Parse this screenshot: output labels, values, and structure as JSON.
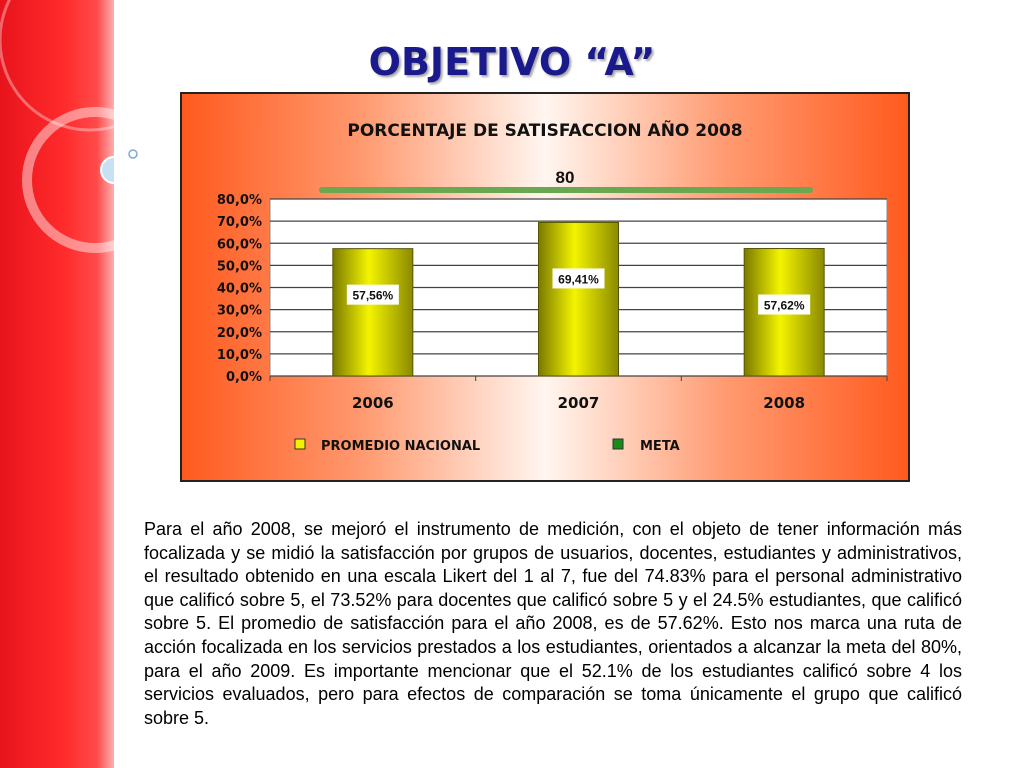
{
  "slide": {
    "title": "OBJETIVO “A”",
    "paragraph": "Para el año 2008, se mejoró el instrumento de medición, con el objeto de tener información más focalizada y se midió la satisfacción por grupos de usuarios,  docentes, estudiantes y administrativos, el resultado obtenido en una escala Likert del 1 al 7, fue del 74.83% para el personal administrativo que calificó sobre 5, el 73.52% para docentes que calificó sobre 5 y el 24.5% estudiantes, que calificó sobre 5. El promedio de satisfacción para el año 2008, es de 57.62%. Esto nos marca una ruta de acción focalizada en los servicios prestados a los estudiantes, orientados a alcanzar la meta del 80%, para el año 2009.  Es importante mencionar que el 52.1% de los estudiantes calificó sobre 4 los servicios evaluados, pero para efectos de comparación se toma únicamente el grupo que calificó sobre 5."
  },
  "chart_data": {
    "type": "bar",
    "title": "PORCENTAJE DE SATISFACCION AÑO 2008",
    "categories": [
      "2006",
      "2007",
      "2008"
    ],
    "series": [
      {
        "name": "PROMEDIO NACIONAL",
        "values": [
          57.56,
          69.41,
          57.62
        ],
        "data_labels": [
          "57,56%",
          "69,41%",
          "57,62%"
        ],
        "color": "#e0e000"
      },
      {
        "name": "META",
        "type": "line",
        "value": 80,
        "data_label": "80",
        "color": "#6aa84f",
        "legend_color": "#1a8a1a"
      }
    ],
    "yticks": [
      0,
      10,
      20,
      30,
      40,
      50,
      60,
      70,
      80
    ],
    "ytick_labels": [
      "0,0%",
      "10,0%",
      "20,0%",
      "30,0%",
      "40,0%",
      "50,0%",
      "60,0%",
      "70,0%",
      "80,0%"
    ],
    "ylim": [
      0,
      80
    ],
    "grid": true,
    "legend_position": "bottom"
  }
}
